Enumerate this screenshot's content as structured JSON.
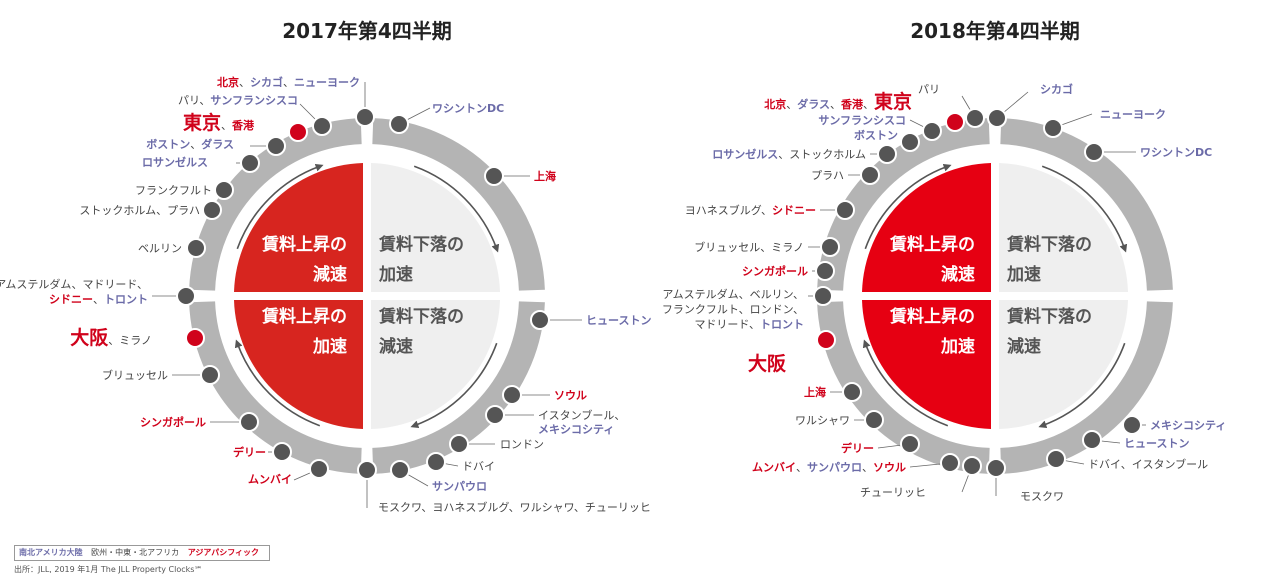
{
  "colors": {
    "americas": "#6b6ba8",
    "emea": "#444444",
    "apac": "#d0021b",
    "ring": "#b4b4b4",
    "red_fill": "#d7251f",
    "red_fill_2018": "#e60012",
    "light_fill": "#efefef",
    "dot": "#555555"
  },
  "quadrant_labels": {
    "top_left": [
      "賃料上昇の",
      "減速"
    ],
    "top_right": [
      "賃料下落の",
      "加速"
    ],
    "bottom_left": [
      "賃料上昇の",
      "加速"
    ],
    "bottom_right": [
      "賃料下落の",
      "減速"
    ]
  },
  "clocks": [
    {
      "title": "2017年第4四半期",
      "labels": [
        {
          "parts": [
            {
              "t": "北京",
              "c": "apac"
            },
            {
              "t": "、",
              "c": "emea"
            },
            {
              "t": "シカゴ",
              "c": "americas"
            },
            {
              "t": "、",
              "c": "emea"
            },
            {
              "t": "ニューヨーク",
              "c": "americas"
            }
          ]
        },
        {
          "parts": [
            {
              "t": "パリ",
              "c": "emea"
            },
            {
              "t": "、",
              "c": "emea"
            },
            {
              "t": "サンフランシスコ",
              "c": "americas"
            }
          ]
        },
        {
          "parts": [
            {
              "t": "東京",
              "c": "apac",
              "big": true
            },
            {
              "t": "、",
              "c": "emea"
            },
            {
              "t": "香港",
              "c": "apac"
            }
          ]
        },
        {
          "parts": [
            {
              "t": "ボストン",
              "c": "americas"
            },
            {
              "t": "、",
              "c": "emea"
            },
            {
              "t": "ダラス",
              "c": "americas"
            }
          ]
        },
        {
          "parts": [
            {
              "t": "ロサンゼルス",
              "c": "americas"
            }
          ]
        },
        {
          "parts": [
            {
              "t": "フランクフルト",
              "c": "emea"
            }
          ]
        },
        {
          "parts": [
            {
              "t": "ストックホルム",
              "c": "emea"
            },
            {
              "t": "、",
              "c": "emea"
            },
            {
              "t": "プラハ",
              "c": "emea"
            }
          ]
        },
        {
          "parts": [
            {
              "t": "ベルリン",
              "c": "emea"
            }
          ]
        },
        {
          "parts": [
            {
              "t": "アムステルダム",
              "c": "emea"
            },
            {
              "t": "、",
              "c": "emea"
            },
            {
              "t": "マドリード",
              "c": "emea"
            },
            {
              "t": "、",
              "c": "emea"
            }
          ]
        },
        {
          "parts": [
            {
              "t": "シドニー",
              "c": "apac"
            },
            {
              "t": "、",
              "c": "emea"
            },
            {
              "t": "トロント",
              "c": "americas"
            }
          ]
        },
        {
          "parts": [
            {
              "t": "大阪",
              "c": "apac",
              "big": true
            },
            {
              "t": "、",
              "c": "emea"
            },
            {
              "t": "ミラノ",
              "c": "emea"
            }
          ]
        },
        {
          "parts": [
            {
              "t": "ブリュッセル",
              "c": "emea"
            }
          ]
        },
        {
          "parts": [
            {
              "t": "シンガポール",
              "c": "apac"
            }
          ]
        },
        {
          "parts": [
            {
              "t": "デリー",
              "c": "apac"
            }
          ]
        },
        {
          "parts": [
            {
              "t": "ムンバイ",
              "c": "apac"
            }
          ]
        },
        {
          "parts": [
            {
              "t": "ワシントンDC",
              "c": "americas"
            }
          ]
        },
        {
          "parts": [
            {
              "t": "上海",
              "c": "apac"
            }
          ]
        },
        {
          "parts": [
            {
              "t": "ヒューストン",
              "c": "americas"
            }
          ]
        },
        {
          "parts": [
            {
              "t": "ソウル",
              "c": "apac"
            }
          ]
        },
        {
          "parts": [
            {
              "t": "イスタンブール",
              "c": "emea"
            },
            {
              "t": "、",
              "c": "emea"
            }
          ]
        },
        {
          "parts": [
            {
              "t": "メキシコシティ",
              "c": "americas"
            }
          ]
        },
        {
          "parts": [
            {
              "t": "ロンドン",
              "c": "emea"
            }
          ]
        },
        {
          "parts": [
            {
              "t": "ドバイ",
              "c": "emea"
            }
          ]
        },
        {
          "parts": [
            {
              "t": "サンパウロ",
              "c": "americas"
            }
          ]
        },
        {
          "parts": [
            {
              "t": "モスクワ",
              "c": "emea"
            },
            {
              "t": "、",
              "c": "emea"
            },
            {
              "t": "ヨハネスブルグ",
              "c": "emea"
            },
            {
              "t": "、",
              "c": "emea"
            },
            {
              "t": "ワルシャワ",
              "c": "emea"
            },
            {
              "t": "、",
              "c": "emea"
            },
            {
              "t": "チューリッヒ",
              "c": "emea"
            }
          ]
        }
      ]
    },
    {
      "title": "2018年第4四半期",
      "labels": [
        {
          "parts": [
            {
              "t": "パリ",
              "c": "emea"
            }
          ]
        },
        {
          "parts": [
            {
              "t": "北京",
              "c": "apac"
            },
            {
              "t": "、",
              "c": "emea"
            },
            {
              "t": "ダラス",
              "c": "americas"
            },
            {
              "t": "、",
              "c": "emea"
            },
            {
              "t": "香港",
              "c": "apac"
            },
            {
              "t": "、",
              "c": "emea"
            },
            {
              "t": "東京",
              "c": "apac",
              "big": true
            }
          ]
        },
        {
          "parts": [
            {
              "t": "サンフランシスコ",
              "c": "americas"
            }
          ]
        },
        {
          "parts": [
            {
              "t": "ボストン",
              "c": "americas"
            }
          ]
        },
        {
          "parts": [
            {
              "t": "ロサンゼルス",
              "c": "americas"
            },
            {
              "t": "、",
              "c": "emea"
            },
            {
              "t": "ストックホルム",
              "c": "emea"
            }
          ]
        },
        {
          "parts": [
            {
              "t": "プラハ",
              "c": "emea"
            }
          ]
        },
        {
          "parts": [
            {
              "t": "ヨハネスブルグ",
              "c": "emea"
            },
            {
              "t": "、",
              "c": "emea"
            },
            {
              "t": "シドニー",
              "c": "apac"
            }
          ]
        },
        {
          "parts": [
            {
              "t": "ブリュッセル",
              "c": "emea"
            },
            {
              "t": "、",
              "c": "emea"
            },
            {
              "t": "ミラノ",
              "c": "emea"
            }
          ]
        },
        {
          "parts": [
            {
              "t": "シンガポール",
              "c": "apac"
            }
          ]
        },
        {
          "parts": [
            {
              "t": "アムステルダム",
              "c": "emea"
            },
            {
              "t": "、",
              "c": "emea"
            },
            {
              "t": "ベルリン",
              "c": "emea"
            },
            {
              "t": "、",
              "c": "emea"
            }
          ]
        },
        {
          "parts": [
            {
              "t": "フランクフルト",
              "c": "emea"
            },
            {
              "t": "、",
              "c": "emea"
            },
            {
              "t": "ロンドン",
              "c": "emea"
            },
            {
              "t": "、",
              "c": "emea"
            }
          ]
        },
        {
          "parts": [
            {
              "t": "マドリード",
              "c": "emea"
            },
            {
              "t": "、",
              "c": "emea"
            },
            {
              "t": "トロント",
              "c": "americas"
            }
          ]
        },
        {
          "parts": [
            {
              "t": "大阪",
              "c": "apac",
              "big": true
            }
          ]
        },
        {
          "parts": [
            {
              "t": "上海",
              "c": "apac"
            }
          ]
        },
        {
          "parts": [
            {
              "t": "ワルシャワ",
              "c": "emea"
            }
          ]
        },
        {
          "parts": [
            {
              "t": "デリー",
              "c": "apac"
            }
          ]
        },
        {
          "parts": [
            {
              "t": "ムンバイ",
              "c": "apac"
            },
            {
              "t": "、",
              "c": "emea"
            },
            {
              "t": "サンパウロ",
              "c": "americas"
            },
            {
              "t": "、",
              "c": "emea"
            },
            {
              "t": "ソウル",
              "c": "apac"
            }
          ]
        },
        {
          "parts": [
            {
              "t": "チューリッヒ",
              "c": "emea"
            }
          ]
        },
        {
          "parts": [
            {
              "t": "シカゴ",
              "c": "americas"
            }
          ]
        },
        {
          "parts": [
            {
              "t": "ニューヨーク",
              "c": "americas"
            }
          ]
        },
        {
          "parts": [
            {
              "t": "ワシントンDC",
              "c": "americas"
            }
          ]
        },
        {
          "parts": [
            {
              "t": "メキシコシティ",
              "c": "americas"
            }
          ]
        },
        {
          "parts": [
            {
              "t": "ヒューストン",
              "c": "americas"
            }
          ]
        },
        {
          "parts": [
            {
              "t": "ドバイ",
              "c": "emea"
            },
            {
              "t": "、",
              "c": "emea"
            },
            {
              "t": "イスタンブール",
              "c": "emea"
            }
          ]
        },
        {
          "parts": [
            {
              "t": "モスクワ",
              "c": "emea"
            }
          ]
        }
      ]
    }
  ],
  "legend": {
    "americas": "南北アメリカ大陸",
    "emea": "欧州・中東・北アフリカ",
    "apac": "アジアパシフィック"
  },
  "source": "出所：JLL, 2019 年1月  The JLL Property Clocks℠"
}
